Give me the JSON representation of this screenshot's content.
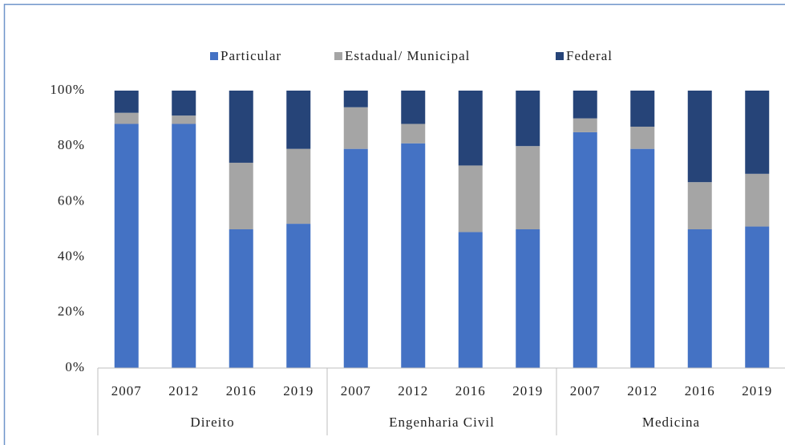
{
  "chart_data": {
    "type": "stacked_bar_100",
    "categories": [
      "2007",
      "2012",
      "2016",
      "2019",
      "2007",
      "2012",
      "2016",
      "2019",
      "2007",
      "2012",
      "2016",
      "2019"
    ],
    "groups": [
      "Direito",
      "Engenharia Civil",
      "Medicina"
    ],
    "series": [
      {
        "name": "Particular",
        "color": "#4472c4",
        "values": [
          88,
          88,
          50,
          52,
          79,
          81,
          49,
          50,
          85,
          79,
          50,
          51
        ]
      },
      {
        "name": "Estadual/ Municipal",
        "color": "#a5a5a5",
        "values": [
          4,
          3,
          24,
          27,
          15,
          7,
          24,
          30,
          5,
          8,
          17,
          19
        ]
      },
      {
        "name": "Federal",
        "color": "#264478",
        "values": [
          8,
          9,
          26,
          21,
          6,
          12,
          27,
          20,
          10,
          13,
          33,
          30
        ]
      }
    ],
    "ylim": [
      0,
      100
    ],
    "yticks": [
      {
        "value": 0,
        "label": "0%"
      },
      {
        "value": 20,
        "label": "20%"
      },
      {
        "value": 40,
        "label": "40%"
      },
      {
        "value": 60,
        "label": "60%"
      },
      {
        "value": 80,
        "label": "80%"
      },
      {
        "value": 100,
        "label": "100%"
      }
    ],
    "legend": "top"
  }
}
